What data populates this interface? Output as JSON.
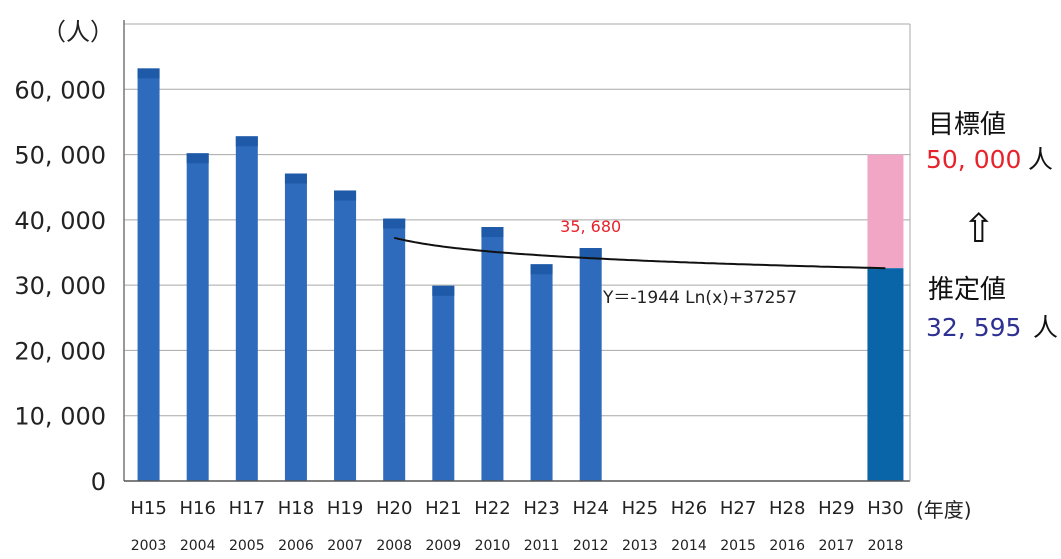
{
  "chart_data": {
    "type": "bar",
    "y_unit_label": "（人）",
    "x_unit_label": "(年度)",
    "ylim": [
      0,
      70000
    ],
    "y_ticks": [
      {
        "value": 0,
        "label": "0"
      },
      {
        "value": 10000,
        "label": "10, 000"
      },
      {
        "value": 20000,
        "label": "20, 000"
      },
      {
        "value": 30000,
        "label": "30, 000"
      },
      {
        "value": 40000,
        "label": "40, 000"
      },
      {
        "value": 50000,
        "label": "50, 000"
      },
      {
        "value": 60000,
        "label": "60, 000"
      }
    ],
    "grid": true,
    "categories": [
      "H15",
      "H16",
      "H17",
      "H18",
      "H19",
      "H20",
      "H21",
      "H22",
      "H23",
      "H24",
      "H25",
      "H26",
      "H27",
      "H28",
      "H29",
      "H30"
    ],
    "years": [
      "2003",
      "2004",
      "2005",
      "2006",
      "2007",
      "2008",
      "2009",
      "2010",
      "2011",
      "2012",
      "2013",
      "2014",
      "2015",
      "2016",
      "2017",
      "2018"
    ],
    "values": [
      63200,
      50200,
      52800,
      47100,
      44500,
      40200,
      29900,
      38900,
      33200,
      35680,
      null,
      null,
      null,
      null,
      null,
      32595
    ],
    "target": {
      "category": "H30",
      "value": 50000
    },
    "trendline": {
      "formula": "Y＝-1944 Ln(x)+37257",
      "from_category": "H20",
      "to_category": "H30",
      "a": -1944,
      "b": 37257
    },
    "callout": {
      "category": "H24",
      "label": "35, 680"
    },
    "colors": {
      "bar": "#2f6bbd",
      "bar_top": "#1e5aa8",
      "estimate": "#0a64a8",
      "target": "#f2a6c6",
      "callout": "#e8222a",
      "trend": "#111111",
      "grid": "#a8a8a8"
    }
  },
  "side_panel": {
    "target_label": "目標値",
    "target_value": "50, 000",
    "target_unit": "人",
    "target_color": "#e8222a",
    "arrow": "⇧",
    "arrow_icon": "up-arrow-icon",
    "estimate_label": "推定値",
    "estimate_value": "32, 595",
    "estimate_unit": "人",
    "estimate_color": "#2e3192"
  }
}
